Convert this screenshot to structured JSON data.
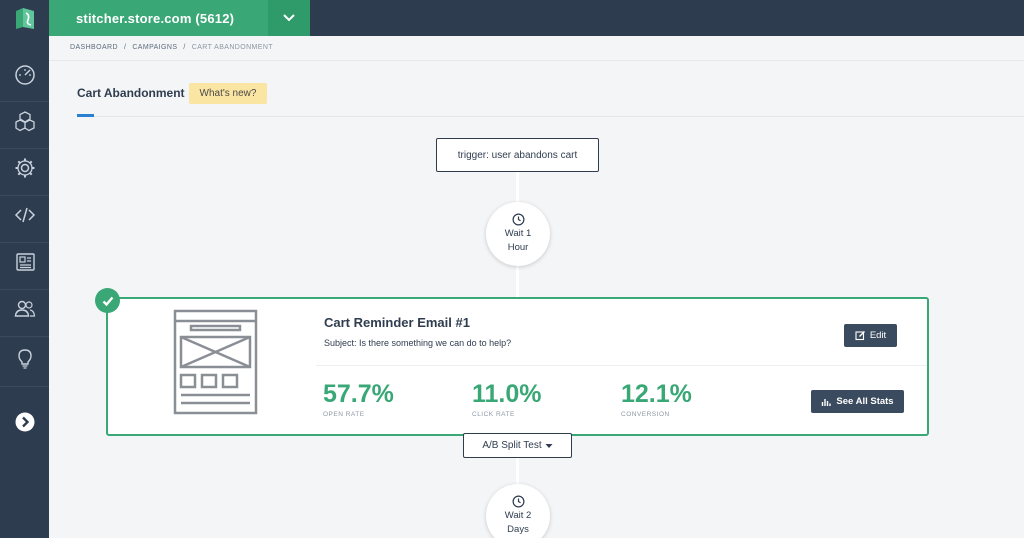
{
  "store_selector": {
    "label": "stitcher.store.com (5612)"
  },
  "breadcrumb": [
    "DASHBOARD",
    "/",
    "CAMPAIGNS",
    "/",
    "CART ABANDONMENT"
  ],
  "page": {
    "title": "Cart Abandonment",
    "badge": "What's new?"
  },
  "sidebar": {
    "items": [
      "dashboard-icon",
      "cubes-icon",
      "gear-icon",
      "code-icon",
      "newspaper-icon",
      "users-icon",
      "lightbulb-icon",
      "chevron-right-icon"
    ]
  },
  "flow": {
    "trigger": "trigger: user abandons cart",
    "wait1": {
      "line1": "Wait 1",
      "line2": "Hour"
    },
    "email": {
      "title": "Cart Reminder Email #1",
      "subject": "Subject: Is there something we can do to help?",
      "edit_label": "Edit",
      "stats_label": "See All Stats",
      "stats": [
        {
          "value": "57.7%",
          "label": "OPEN RATE"
        },
        {
          "value": "11.0%",
          "label": "CLICK RATE"
        },
        {
          "value": "12.1%",
          "label": "CONVERSION"
        }
      ]
    },
    "split_test": {
      "label": "A/B Split Test"
    },
    "wait2": {
      "line1": "Wait 2",
      "line2": "Days"
    }
  },
  "colors": {
    "sidebar": "#2e3c4f",
    "brand_green": "#3aa776",
    "accent_blue": "#2b7fd1",
    "badge_yellow": "#fbe5a3"
  }
}
